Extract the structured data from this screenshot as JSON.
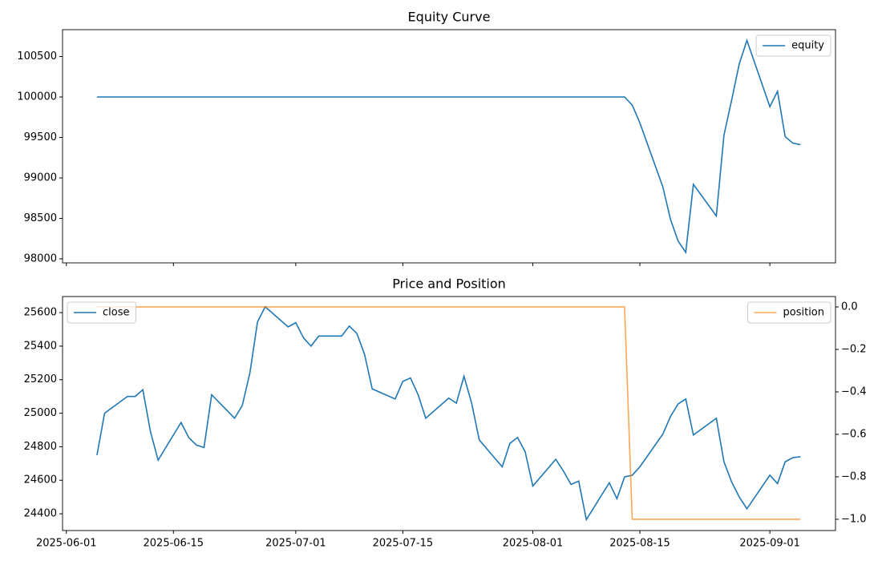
{
  "chart_data": [
    {
      "type": "line",
      "title": "Equity Curve",
      "x": [
        "2025-06-05",
        "2025-06-06",
        "2025-06-09",
        "2025-06-10",
        "2025-06-11",
        "2025-06-12",
        "2025-06-13",
        "2025-06-16",
        "2025-06-17",
        "2025-06-18",
        "2025-06-19",
        "2025-06-20",
        "2025-06-23",
        "2025-06-24",
        "2025-06-25",
        "2025-06-26",
        "2025-06-27",
        "2025-06-30",
        "2025-07-01",
        "2025-07-02",
        "2025-07-03",
        "2025-07-04",
        "2025-07-07",
        "2025-07-08",
        "2025-07-09",
        "2025-07-10",
        "2025-07-11",
        "2025-07-14",
        "2025-07-15",
        "2025-07-16",
        "2025-07-17",
        "2025-07-18",
        "2025-07-21",
        "2025-07-22",
        "2025-07-23",
        "2025-07-24",
        "2025-07-25",
        "2025-07-28",
        "2025-07-29",
        "2025-07-30",
        "2025-07-31",
        "2025-08-01",
        "2025-08-04",
        "2025-08-05",
        "2025-08-06",
        "2025-08-07",
        "2025-08-08",
        "2025-08-11",
        "2025-08-12",
        "2025-08-13",
        "2025-08-14",
        "2025-08-15",
        "2025-08-18",
        "2025-08-19",
        "2025-08-20",
        "2025-08-21",
        "2025-08-22",
        "2025-08-25",
        "2025-08-26",
        "2025-08-27",
        "2025-08-28",
        "2025-08-29",
        "2025-09-01",
        "2025-09-02",
        "2025-09-03",
        "2025-09-04",
        "2025-09-05"
      ],
      "series": [
        {
          "name": "equity",
          "color": "#1f77b4",
          "values": [
            100000,
            100000,
            100000,
            100000,
            100000,
            100000,
            100000,
            100000,
            100000,
            100000,
            100000,
            100000,
            100000,
            100000,
            100000,
            100000,
            100000,
            100000,
            100000,
            100000,
            100000,
            100000,
            100000,
            100000,
            100000,
            100000,
            100000,
            100000,
            100000,
            100000,
            100000,
            100000,
            100000,
            100000,
            100000,
            100000,
            100000,
            100000,
            100000,
            100000,
            100000,
            100000,
            100000,
            100000,
            100000,
            100000,
            100000,
            100000,
            100000,
            100000,
            99900,
            99680,
            98890,
            98490,
            98220,
            98080,
            98920,
            98530,
            99530,
            99960,
            100410,
            100700,
            99880,
            100070,
            99510,
            99430,
            99410
          ]
        }
      ],
      "xlim": [
        "2025-05-31T12:00",
        "2025-09-09T14:00"
      ],
      "ylim": [
        97950,
        100832
      ],
      "yticks": [
        98000,
        98500,
        99000,
        99500,
        100000,
        100500
      ],
      "legend": "upper right"
    },
    {
      "type": "line",
      "title": "Price and Position",
      "x": [
        "2025-06-05",
        "2025-06-06",
        "2025-06-09",
        "2025-06-10",
        "2025-06-11",
        "2025-06-12",
        "2025-06-13",
        "2025-06-16",
        "2025-06-17",
        "2025-06-18",
        "2025-06-19",
        "2025-06-20",
        "2025-06-23",
        "2025-06-24",
        "2025-06-25",
        "2025-06-26",
        "2025-06-27",
        "2025-06-30",
        "2025-07-01",
        "2025-07-02",
        "2025-07-03",
        "2025-07-04",
        "2025-07-07",
        "2025-07-08",
        "2025-07-09",
        "2025-07-10",
        "2025-07-11",
        "2025-07-14",
        "2025-07-15",
        "2025-07-16",
        "2025-07-17",
        "2025-07-18",
        "2025-07-21",
        "2025-07-22",
        "2025-07-23",
        "2025-07-24",
        "2025-07-25",
        "2025-07-28",
        "2025-07-29",
        "2025-07-30",
        "2025-07-31",
        "2025-08-01",
        "2025-08-04",
        "2025-08-05",
        "2025-08-06",
        "2025-08-07",
        "2025-08-08",
        "2025-08-11",
        "2025-08-12",
        "2025-08-13",
        "2025-08-14",
        "2025-08-15",
        "2025-08-18",
        "2025-08-19",
        "2025-08-20",
        "2025-08-21",
        "2025-08-22",
        "2025-08-25",
        "2025-08-26",
        "2025-08-27",
        "2025-08-28",
        "2025-08-29",
        "2025-09-01",
        "2025-09-02",
        "2025-09-03",
        "2025-09-04",
        "2025-09-05"
      ],
      "series": [
        {
          "name": "close",
          "color": "#1f77b4",
          "values": [
            24750,
            25000,
            25100,
            25100,
            25140,
            24890,
            24720,
            24945,
            24855,
            24810,
            24795,
            25110,
            24970,
            25045,
            25240,
            25545,
            25635,
            25515,
            25540,
            25450,
            25400,
            25460,
            25460,
            25520,
            25475,
            25350,
            25145,
            25085,
            25190,
            25210,
            25110,
            24970,
            25090,
            25060,
            25220,
            25060,
            24840,
            24680,
            24820,
            24855,
            24770,
            24565,
            24725,
            24655,
            24575,
            24595,
            24365,
            24585,
            24490,
            24620,
            24630,
            24680,
            24875,
            24980,
            25055,
            25085,
            24870,
            24970,
            24710,
            24590,
            24500,
            24430,
            24630,
            24580,
            24710,
            24735,
            24740
          ]
        },
        {
          "name": "position",
          "color": "#ff7f0e",
          "alpha": 0.7,
          "axis": "y2",
          "values": [
            0,
            0,
            0,
            0,
            0,
            0,
            0,
            0,
            0,
            0,
            0,
            0,
            0,
            0,
            0,
            0,
            0,
            0,
            0,
            0,
            0,
            0,
            0,
            0,
            0,
            0,
            0,
            0,
            0,
            0,
            0,
            0,
            0,
            0,
            0,
            0,
            0,
            0,
            0,
            0,
            0,
            0,
            0,
            0,
            0,
            0,
            0,
            0,
            0,
            0,
            -1,
            -1,
            -1,
            -1,
            -1,
            -1,
            -1,
            -1,
            -1,
            -1,
            -1,
            -1,
            -1,
            -1,
            -1,
            -1,
            -1
          ]
        }
      ],
      "xlim": [
        "2025-05-31T12:00",
        "2025-09-09T14:00"
      ],
      "xticks": [
        "2025-06-01",
        "2025-06-15",
        "2025-07-01",
        "2025-07-15",
        "2025-08-01",
        "2025-08-15",
        "2025-09-01"
      ],
      "ylim": [
        24300,
        25696
      ],
      "yticks": [
        24400,
        24600,
        24800,
        25000,
        25200,
        25400,
        25600
      ],
      "y2lim": [
        -1.053,
        0.049
      ],
      "y2ticks": [
        {
          "value": -1,
          "label": "−1.0"
        },
        {
          "value": -0.8,
          "label": "−0.8"
        },
        {
          "value": -0.6,
          "label": "−0.6"
        },
        {
          "value": -0.4,
          "label": "−0.4"
        },
        {
          "value": -0.2,
          "label": "−0.2"
        },
        {
          "value": 0,
          "label": "0.0"
        }
      ],
      "legend": "upper left",
      "legend2": "upper right"
    }
  ]
}
